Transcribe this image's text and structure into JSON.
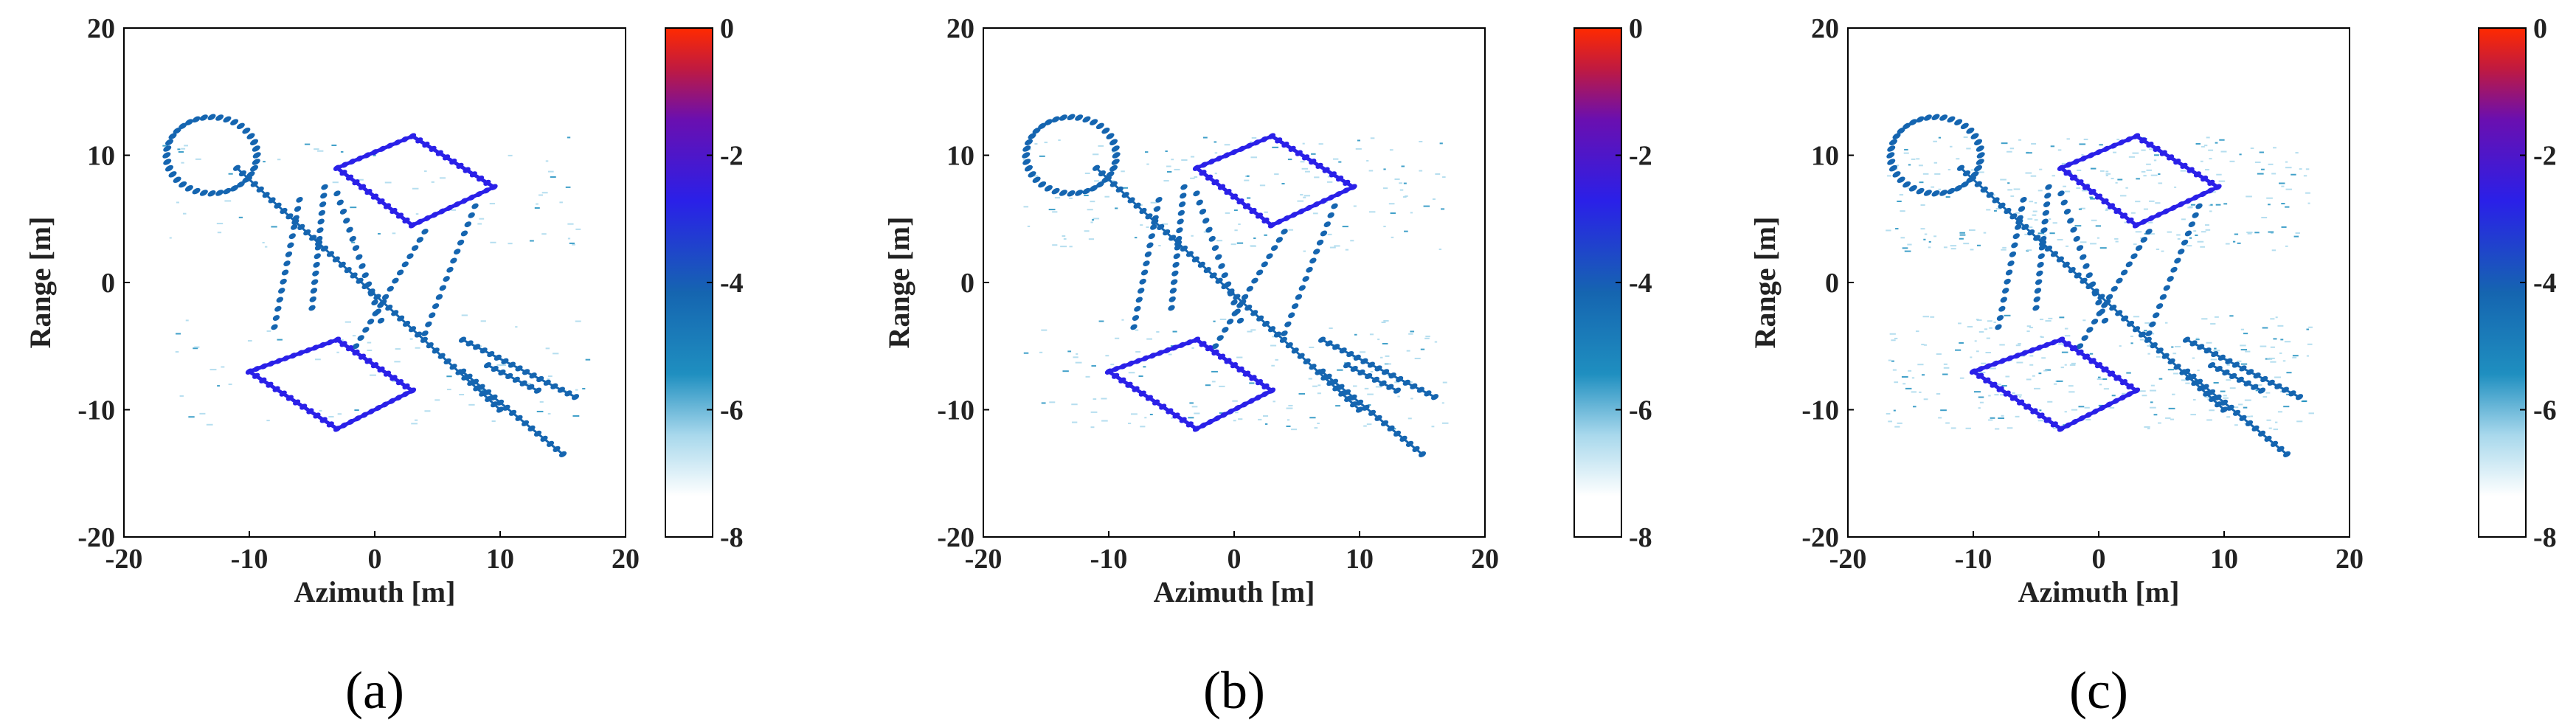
{
  "chart_data": [
    {
      "type": "heatmap",
      "panel_label": "(a)",
      "xlabel": "Azimuth [m]",
      "ylabel": "Range [m]",
      "xlim": [
        -20,
        20
      ],
      "ylim": [
        -20,
        20
      ],
      "xticks": [
        "-20",
        "-10",
        "0",
        "10",
        "20"
      ],
      "yticks": [
        "20",
        "10",
        "0",
        "-10",
        "-20"
      ],
      "colorbar": {
        "min": -8,
        "max": 0,
        "ticks": [
          "0",
          "-2",
          "-4",
          "-6",
          "-8"
        ]
      },
      "noise_level": 0.25
    },
    {
      "type": "heatmap",
      "panel_label": "(b)",
      "xlabel": "Azimuth [m]",
      "ylabel": "Range [m]",
      "xlim": [
        -20,
        20
      ],
      "ylim": [
        -20,
        20
      ],
      "xticks": [
        "-20",
        "-10",
        "0",
        "10",
        "20"
      ],
      "yticks": [
        "20",
        "10",
        "0",
        "-10",
        "-20"
      ],
      "colorbar": {
        "min": -8,
        "max": 0,
        "ticks": [
          "0",
          "-2",
          "-4",
          "-6",
          "-8"
        ]
      },
      "noise_level": 0.55
    },
    {
      "type": "heatmap",
      "panel_label": "(c)",
      "xlabel": "Azimuth [m]",
      "ylabel": "Range [m]",
      "xlim": [
        -20,
        20
      ],
      "ylim": [
        -20,
        20
      ],
      "xticks": [
        "-20",
        "-10",
        "0",
        "10",
        "20"
      ],
      "yticks": [
        "20",
        "10",
        "0",
        "-10",
        "-20"
      ],
      "colorbar": {
        "min": -8,
        "max": 0,
        "ticks": [
          "0",
          "-2",
          "-4",
          "-6",
          "-8"
        ]
      },
      "noise_level": 1.0
    }
  ],
  "colors": {
    "colormap": [
      "#ffffff",
      "#a8d8ec",
      "#1f8fc0",
      "#1565b0",
      "#2a20e8",
      "#6a0fb0",
      "#c01a40",
      "#ff2a00"
    ],
    "frame": "#000000"
  }
}
